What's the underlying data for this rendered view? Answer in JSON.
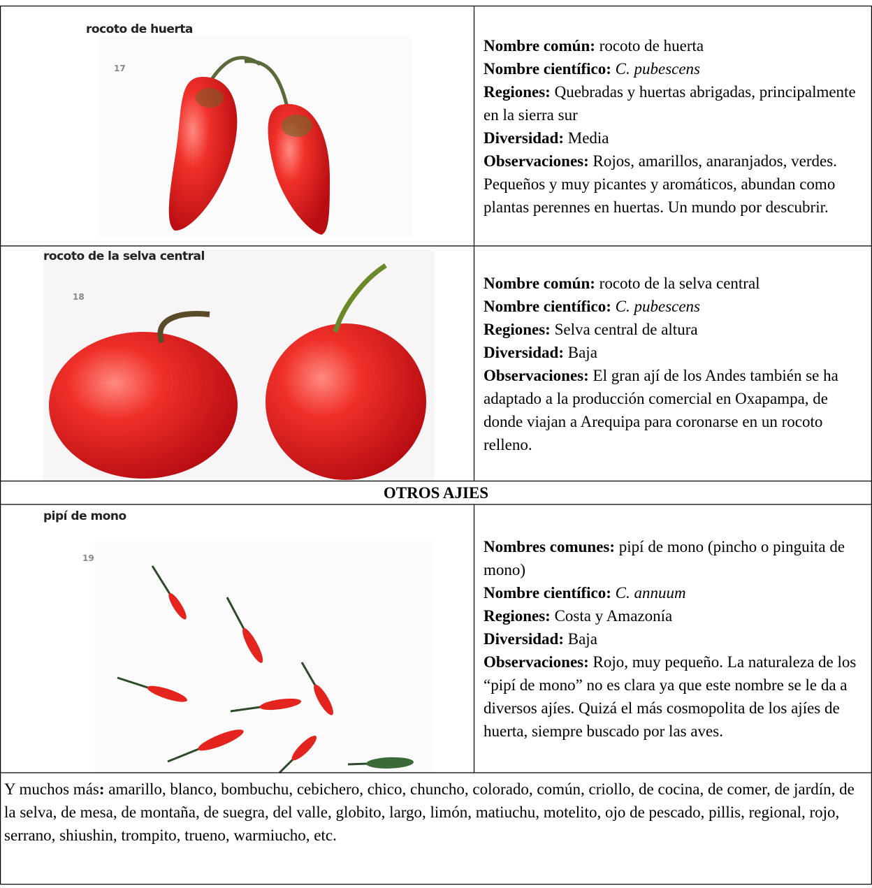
{
  "rows": [
    {
      "image": {
        "caption": "rocoto de huerta",
        "number": "17"
      },
      "fields": [
        {
          "label": "Nombre común:",
          "value": "rocoto de huerta"
        },
        {
          "label": "Nombre científico:",
          "value": "C. pubescens"
        },
        {
          "label": "Regiones:",
          "value": "Quebradas y huertas abrigadas, principalmente en la sierra sur"
        },
        {
          "label": "Diversidad:",
          "value": "Media"
        },
        {
          "label": "Observaciones:",
          "value": "Rojos, amarillos, anaranjados, verdes. Pequeños y muy picantes y aromáticos, abundan como plantas perennes en huertas. Un mundo por descubrir."
        }
      ]
    },
    {
      "image": {
        "caption": "rocoto de la selva central",
        "number": "18"
      },
      "fields": [
        {
          "label": "Nombre común:",
          "value": "rocoto de la selva central"
        },
        {
          "label": "Nombre científico:",
          "value": "C. pubescens"
        },
        {
          "label": "Regiones:",
          "value": "Selva central de altura"
        },
        {
          "label": "Diversidad:",
          "value": "Baja"
        },
        {
          "label": "Observaciones:",
          "value": "El gran ají de los Andes también se ha adaptado a la producción comercial en Oxapampa, de donde viajan a Arequipa para coronarse en un rocoto relleno."
        }
      ]
    },
    {
      "image": {
        "caption": "pipí de mono",
        "number": "19"
      },
      "fields": [
        {
          "label": "Nombres comunes:",
          "value": "pipí de mono (pincho o pinguita de mono)"
        },
        {
          "label": "Nombre científico:",
          "value": "C. annuum"
        },
        {
          "label": "Regiones:",
          "value": "Costa y Amazonía"
        },
        {
          "label": "Diversidad:",
          "value": "Baja"
        },
        {
          "label": "Observaciones:",
          "value": "Rojo, muy pequeño. La naturaleza de los “pipí de mono” no es clara ya que este nombre se le da a diversos ajíes. Quizá el más cosmopolita de los ajíes de huerta, siempre buscado por las aves."
        }
      ]
    }
  ],
  "section_title": "OTROS AJIES",
  "footer": {
    "lead": "Y muchos más",
    "colon": ":",
    "text": "amarillo, blanco, bombuchu, cebichero, chico, chuncho, colorado, común, criollo, de cocina, de comer, de jardín, de la selva, de mesa, de montaña, de suegra, del valle, globito, largo, limón, matiuchu, motelito, ojo de pescado, pillis, regional, rojo, serrano, shiushin, trompito, trueno, warmiucho, etc."
  }
}
